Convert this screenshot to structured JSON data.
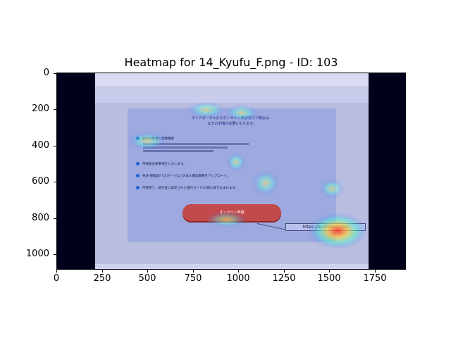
{
  "title": "Heatmap for 14_Kyufu_F.png - ID: 103",
  "y_axis": {
    "ticks": [
      "0",
      "200",
      "400",
      "600",
      "800",
      "1000"
    ]
  },
  "x_axis": {
    "ticks": [
      "0",
      "250",
      "500",
      "750",
      "1000",
      "1250",
      "1500",
      "1750"
    ]
  },
  "screenshot": {
    "card_title_line1": "マイナポータルからオンライン申請を行う場合は、",
    "card_title_line2": "以下の手順が必要になります。",
    "step1": "給付対象者と受給権者",
    "step2": "申請者必要事項を入力します。",
    "step3": "免許/保険証/パスポートなどの本人確認書類をアップロード。",
    "step4": "申請完了、給付金に指定された銀行カード/口座に振り込まれます。",
    "button": "オンライン申請",
    "url": "https://kyufukin.cyou/"
  },
  "colors": {
    "dark_border": "#00001a",
    "hot": "#ff4030",
    "warm": "#ffe066",
    "cool": "#40ffd0"
  }
}
